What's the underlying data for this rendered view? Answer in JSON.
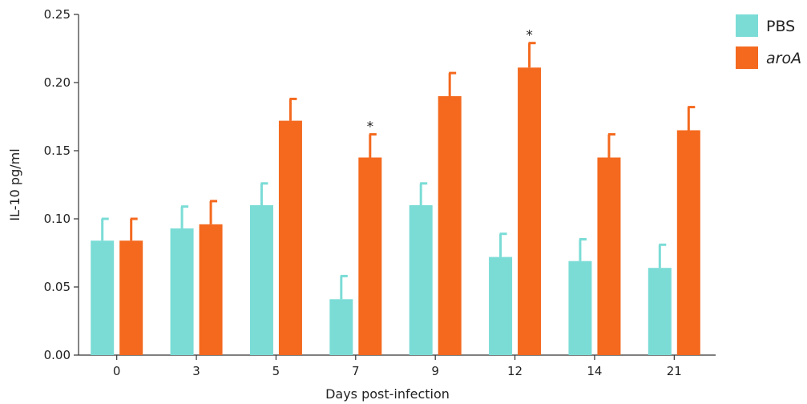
{
  "chart_data": {
    "type": "bar",
    "title": "",
    "xlabel": "Days post-infection",
    "ylabel": "IL-10 pg/ml",
    "ylim": [
      0,
      0.25
    ],
    "yticks": [
      "0.00",
      "0.05",
      "0.10",
      "0.15",
      "0.20",
      "0.25"
    ],
    "ytick_values": [
      0,
      0.05,
      0.1,
      0.15,
      0.2,
      0.25
    ],
    "categories": [
      "0",
      "3",
      "5",
      "7",
      "9",
      "12",
      "14",
      "21"
    ],
    "legend_position": "top-right",
    "series": [
      {
        "name": "PBS",
        "italic": false,
        "color": "#7bdcd6",
        "values": [
          0.084,
          0.093,
          0.11,
          0.041,
          0.11,
          0.072,
          0.069,
          0.064
        ],
        "errors": [
          0.016,
          0.016,
          0.016,
          0.017,
          0.016,
          0.017,
          0.016,
          0.017
        ]
      },
      {
        "name": "aroA",
        "italic": true,
        "color": "#f4691e",
        "values": [
          0.084,
          0.096,
          0.172,
          0.145,
          0.19,
          0.211,
          0.145,
          0.165
        ],
        "errors": [
          0.016,
          0.017,
          0.016,
          0.017,
          0.017,
          0.018,
          0.017,
          0.017
        ]
      }
    ],
    "annotations": [
      {
        "category": "7",
        "series": "aroA",
        "text": "*"
      },
      {
        "category": "12",
        "series": "aroA",
        "text": "*"
      }
    ]
  }
}
